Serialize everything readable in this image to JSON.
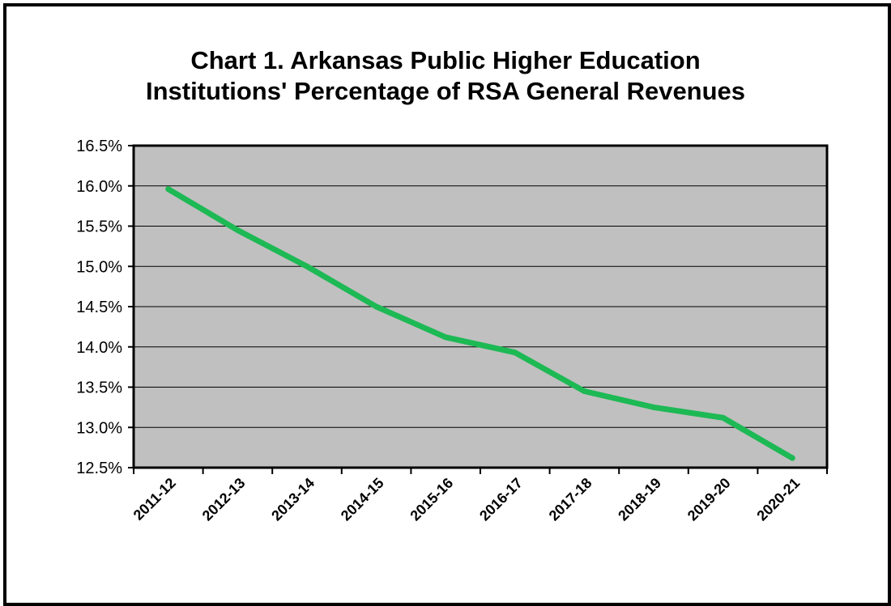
{
  "chart_data": {
    "type": "line",
    "title_line1": "Chart 1. Arkansas Public Higher Education",
    "title_line2": "Institutions' Percentage of RSA General Revenues",
    "xlabel": "",
    "ylabel": "",
    "categories": [
      "2011-12",
      "2012-13",
      "2013-14",
      "2014-15",
      "2015-16",
      "2016-17",
      "2017-18",
      "2018-19",
      "2019-20",
      "2020-21"
    ],
    "series": [
      {
        "values": [
          15.96,
          15.45,
          15.0,
          14.5,
          14.12,
          13.93,
          13.45,
          13.25,
          13.12,
          12.62
        ]
      }
    ],
    "ylim": [
      12.5,
      16.5
    ],
    "yticks": [
      16.5,
      16.0,
      15.5,
      15.0,
      14.5,
      14.0,
      13.5,
      13.0,
      12.5
    ],
    "ytick_labels": [
      "16.5%",
      "16.0%",
      "15.5%",
      "15.0%",
      "14.5%",
      "14.0%",
      "13.5%",
      "13.0%",
      "12.5%"
    ],
    "grid": true,
    "legend": "none",
    "colors": {
      "line": "#1db954",
      "plot_background": "#c0c0c0",
      "gridline": "#000000"
    }
  }
}
